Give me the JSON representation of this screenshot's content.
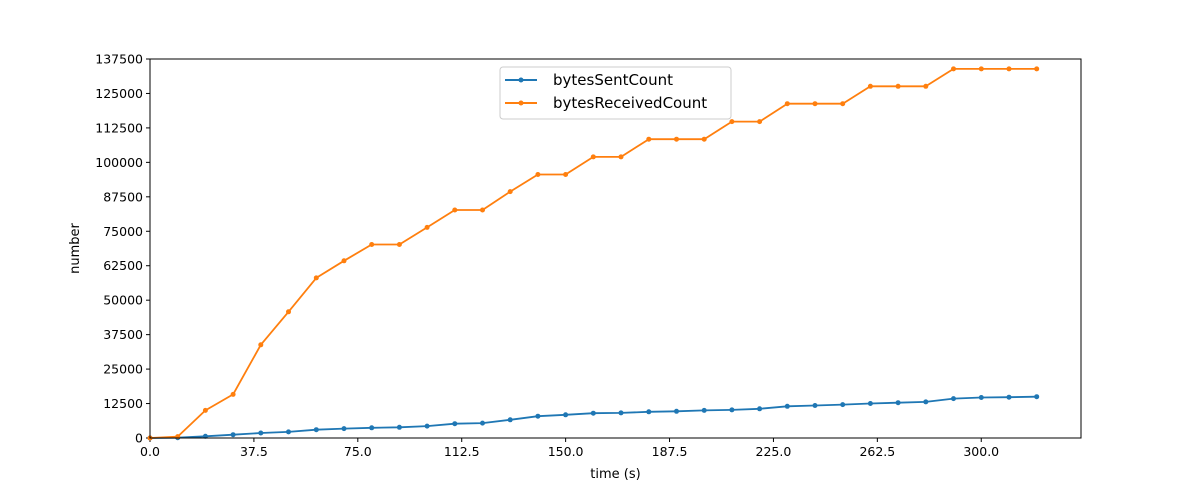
{
  "chart_data": {
    "type": "line",
    "title": "",
    "xlabel": "time (s)",
    "ylabel": "number",
    "xlim": [
      0,
      336
    ],
    "ylim": [
      0,
      137500
    ],
    "x_ticks": [
      "0.0",
      "37.5",
      "75.0",
      "112.5",
      "150.0",
      "187.5",
      "225.0",
      "262.5",
      "300.0"
    ],
    "y_ticks": [
      "0",
      "12500",
      "25000",
      "37500",
      "50000",
      "62500",
      "75000",
      "87500",
      "100000",
      "112500",
      "125000",
      "137500"
    ],
    "x_tick_values": [
      0,
      37.5,
      75,
      112.5,
      150,
      187.5,
      225,
      262.5,
      300
    ],
    "y_tick_values": [
      0,
      12500,
      25000,
      37500,
      50000,
      62500,
      75000,
      87500,
      100000,
      112500,
      125000,
      137500
    ],
    "grid": false,
    "legend_position": "top-center",
    "x": [
      0,
      10,
      20,
      30,
      40,
      50,
      60,
      70,
      80,
      90,
      100,
      110,
      120,
      130,
      140,
      150,
      160,
      170,
      180,
      190,
      200,
      210,
      220,
      230,
      240,
      250,
      260,
      270,
      280,
      290,
      300,
      310,
      320
    ],
    "series": [
      {
        "name": "bytesSentCount",
        "color": "#1f77b4",
        "values": [
          0,
          100,
          600,
          1200,
          1800,
          2200,
          3000,
          3400,
          3700,
          3900,
          4300,
          5200,
          5400,
          6600,
          7900,
          8400,
          9000,
          9100,
          9500,
          9700,
          10000,
          10200,
          10600,
          11500,
          11800,
          12100,
          12500,
          12800,
          13100,
          14300,
          14700,
          14800,
          15000
        ]
      },
      {
        "name": "bytesReceivedCount",
        "color": "#ff7f0e",
        "values": [
          0,
          500,
          10000,
          15800,
          33800,
          45800,
          58100,
          64300,
          70200,
          70200,
          76400,
          82700,
          82700,
          89400,
          95600,
          95600,
          102000,
          102000,
          108400,
          108400,
          108400,
          114800,
          114800,
          121300,
          121300,
          121300,
          127600,
          127600,
          127600,
          133900,
          133900,
          133900,
          133900
        ]
      }
    ]
  }
}
